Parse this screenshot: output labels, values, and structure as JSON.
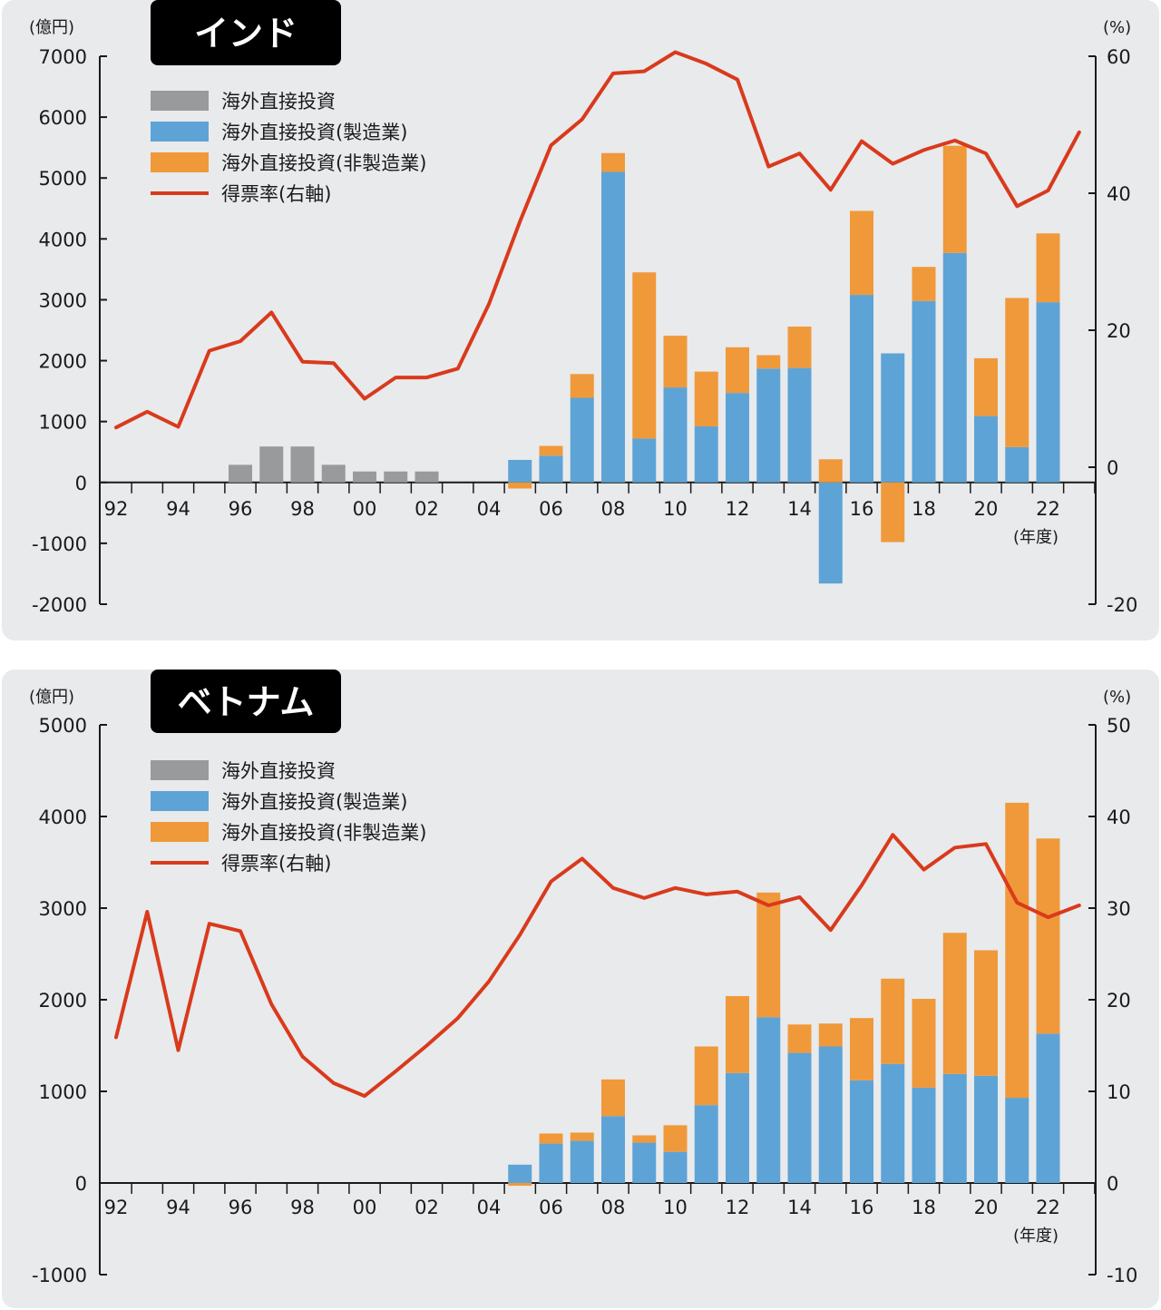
{
  "colors": {
    "panel_bg": "#e8eaec",
    "title_bg": "#000000",
    "title_text": "#ffffff",
    "axis": "#1a1a1a",
    "fdi_total": "#999a9c",
    "fdi_manufacturing": "#5ea3d6",
    "fdi_non_manufacturing": "#f0993a",
    "vote_share": "#d93a1c"
  },
  "chart_data": [
    {
      "type": "bar",
      "title": "インド",
      "left_unit": "(億円)",
      "right_unit": "(%)",
      "x_unit": "(年度)",
      "years": [
        1992,
        1993,
        1994,
        1995,
        1996,
        1997,
        1998,
        1999,
        2000,
        2001,
        2002,
        2003,
        2004,
        2005,
        2006,
        2007,
        2008,
        2009,
        2010,
        2011,
        2012,
        2013,
        2014,
        2015,
        2016,
        2017,
        2018,
        2019,
        2020,
        2021,
        2022,
        2023
      ],
      "x_tick_labels": [
        "92",
        "94",
        "96",
        "98",
        "00",
        "02",
        "04",
        "06",
        "08",
        "10",
        "12",
        "14",
        "16",
        "18",
        "20",
        "22"
      ],
      "x_tick_years": [
        1992,
        1994,
        1996,
        1998,
        2000,
        2002,
        2004,
        2006,
        2008,
        2010,
        2012,
        2014,
        2016,
        2018,
        2020,
        2022
      ],
      "ylim": [
        -2000,
        7000
      ],
      "y_ticks": [
        -2000,
        -1000,
        0,
        1000,
        2000,
        3000,
        4000,
        5000,
        6000,
        7000
      ],
      "y2lim": [
        -20,
        60
      ],
      "y2_ticks": [
        -20,
        0,
        20,
        40,
        60
      ],
      "legend": [
        "海外直接投資",
        "海外直接投資(製造業)",
        "海外直接投資(非製造業)",
        "得票率(右軸)"
      ],
      "series": [
        {
          "name": "海外直接投資",
          "axis": "left",
          "kind": "bar",
          "values": [
            null,
            null,
            null,
            null,
            290,
            590,
            590,
            290,
            180,
            180,
            180,
            null,
            null,
            null,
            null,
            null,
            null,
            null,
            null,
            null,
            null,
            null,
            null,
            null,
            null,
            null,
            null,
            null,
            null,
            null,
            null,
            null
          ]
        },
        {
          "name": "海外直接投資(製造業)",
          "axis": "left",
          "kind": "stack",
          "values": [
            null,
            null,
            null,
            null,
            null,
            null,
            null,
            null,
            null,
            null,
            null,
            null,
            null,
            370,
            440,
            1390,
            5100,
            720,
            1560,
            920,
            1470,
            1870,
            1880,
            -1660,
            3080,
            2120,
            2980,
            3770,
            1090,
            580,
            2960,
            null
          ]
        },
        {
          "name": "海外直接投資(非製造業)",
          "axis": "left",
          "kind": "stack",
          "values": [
            null,
            null,
            null,
            null,
            null,
            null,
            null,
            null,
            null,
            null,
            null,
            null,
            null,
            -100,
            160,
            390,
            310,
            2730,
            850,
            900,
            750,
            220,
            680,
            380,
            1380,
            -980,
            560,
            1760,
            950,
            2450,
            1130,
            null
          ]
        },
        {
          "name": "得票率(右軸)",
          "axis": "right",
          "kind": "line",
          "values": [
            5.8,
            8.1,
            5.9,
            17.0,
            18.4,
            22.6,
            15.4,
            15.2,
            10.0,
            13.1,
            13.1,
            14.4,
            23.8,
            35.9,
            47.0,
            50.8,
            57.5,
            57.8,
            60.6,
            58.9,
            56.6,
            43.9,
            45.8,
            40.5,
            47.6,
            44.3,
            46.3,
            47.7,
            45.8,
            38.1,
            40.4,
            48.9
          ]
        }
      ]
    },
    {
      "type": "bar",
      "title": "ベトナム",
      "left_unit": "(億円)",
      "right_unit": "(%)",
      "x_unit": "(年度)",
      "years": [
        1992,
        1993,
        1994,
        1995,
        1996,
        1997,
        1998,
        1999,
        2000,
        2001,
        2002,
        2003,
        2004,
        2005,
        2006,
        2007,
        2008,
        2009,
        2010,
        2011,
        2012,
        2013,
        2014,
        2015,
        2016,
        2017,
        2018,
        2019,
        2020,
        2021,
        2022,
        2023
      ],
      "x_tick_labels": [
        "92",
        "94",
        "96",
        "98",
        "00",
        "02",
        "04",
        "06",
        "08",
        "10",
        "12",
        "14",
        "16",
        "18",
        "20",
        "22"
      ],
      "x_tick_years": [
        1992,
        1994,
        1996,
        1998,
        2000,
        2002,
        2004,
        2006,
        2008,
        2010,
        2012,
        2014,
        2016,
        2018,
        2020,
        2022
      ],
      "ylim": [
        -1000,
        5000
      ],
      "y_ticks": [
        -1000,
        0,
        1000,
        2000,
        3000,
        4000,
        5000
      ],
      "y2lim": [
        -10,
        50
      ],
      "y2_ticks": [
        -10,
        0,
        10,
        20,
        30,
        40,
        50
      ],
      "legend": [
        "海外直接投資",
        "海外直接投資(製造業)",
        "海外直接投資(非製造業)",
        "得票率(右軸)"
      ],
      "series": [
        {
          "name": "海外直接投資",
          "axis": "left",
          "kind": "bar",
          "values": [
            null,
            null,
            null,
            null,
            null,
            null,
            null,
            null,
            null,
            null,
            null,
            null,
            null,
            null,
            null,
            null,
            null,
            null,
            null,
            null,
            null,
            null,
            null,
            null,
            null,
            null,
            null,
            null,
            null,
            null,
            null,
            null
          ]
        },
        {
          "name": "海外直接投資(製造業)",
          "axis": "left",
          "kind": "stack",
          "values": [
            null,
            null,
            null,
            null,
            null,
            null,
            null,
            null,
            null,
            null,
            null,
            null,
            null,
            200,
            430,
            460,
            730,
            440,
            340,
            850,
            1200,
            1810,
            1420,
            1490,
            1120,
            1300,
            1040,
            1190,
            1170,
            930,
            1630,
            null
          ]
        },
        {
          "name": "海外直接投資(非製造業)",
          "axis": "left",
          "kind": "stack",
          "values": [
            null,
            null,
            null,
            null,
            null,
            null,
            null,
            null,
            null,
            null,
            null,
            null,
            null,
            -30,
            110,
            90,
            400,
            80,
            290,
            640,
            840,
            1360,
            310,
            250,
            680,
            930,
            970,
            1540,
            1370,
            3220,
            2130,
            null
          ]
        },
        {
          "name": "得票率(右軸)",
          "axis": "right",
          "kind": "line",
          "values": [
            15.9,
            29.6,
            14.5,
            28.3,
            27.5,
            19.5,
            13.8,
            10.9,
            9.5,
            12.2,
            15.0,
            18.0,
            22.0,
            27.1,
            32.9,
            35.4,
            32.2,
            31.1,
            32.2,
            31.5,
            31.8,
            30.3,
            31.2,
            27.6,
            32.5,
            38.0,
            34.2,
            36.6,
            37.0,
            30.6,
            29.0,
            30.3
          ]
        }
      ]
    }
  ]
}
